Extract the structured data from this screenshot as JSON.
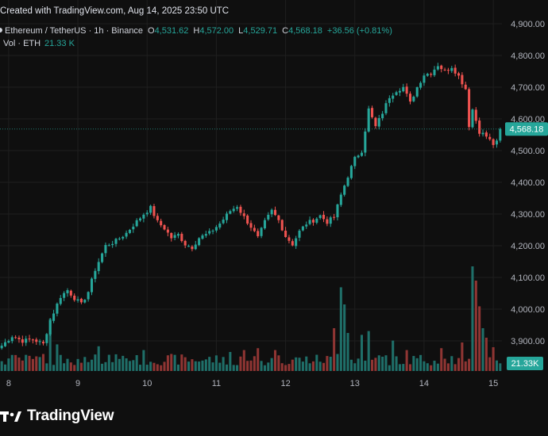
{
  "header": {
    "created_text": "Created with TradingView.com, Aug 14, 2025 23:50 UTC",
    "symbol": "Ethereum / TetherUS · 1h · Binance",
    "ohlc": {
      "o_label": "O",
      "o_value": "4,531.62",
      "h_label": "H",
      "h_value": "4,572.00",
      "l_label": "L",
      "l_value": "4,529.71",
      "c_label": "C",
      "c_value": "4,568.18",
      "change": "+36.56 (+0.81%)"
    },
    "volume_label": "Vol · ETH",
    "volume_value": "21.33 K"
  },
  "branding": {
    "logo_text": "TradingView"
  },
  "icons": {
    "logo": "tradingview-logo-icon"
  },
  "colors": {
    "background": "#0f0f0f",
    "up": "#26a69a",
    "down": "#ef5350",
    "up_volume": "#1f6f69",
    "down_volume": "#8f3533",
    "grid": "#1f1f1f",
    "text": "#d1d4dc"
  },
  "chart_data": {
    "type": "candlestick",
    "symbol": "ETHUSDT",
    "interval": "1h",
    "x_ticks": [
      "8",
      "9",
      "10",
      "11",
      "12",
      "13",
      "14",
      "15"
    ],
    "y_ticks": [
      "3,900.00",
      "4,000.00",
      "4,100.00",
      "4,200.00",
      "4,300.00",
      "4,400.00",
      "4,500.00",
      "4,600.00",
      "4,700.00",
      "4,800.00",
      "4,900.00"
    ],
    "ylim": [
      3810,
      4920
    ],
    "last_price": "4,568.18",
    "last_volume_label": "21.33K",
    "grid": true,
    "close_path": [
      [
        0,
        3885
      ],
      [
        3,
        3915
      ],
      [
        6,
        3900
      ],
      [
        9,
        3905
      ],
      [
        12,
        3890
      ],
      [
        14,
        3965
      ],
      [
        17,
        4040
      ],
      [
        19,
        4060
      ],
      [
        21,
        4035
      ],
      [
        23,
        4015
      ],
      [
        25,
        4055
      ],
      [
        27,
        4125
      ],
      [
        30,
        4200
      ],
      [
        33,
        4215
      ],
      [
        36,
        4240
      ],
      [
        38,
        4265
      ],
      [
        41,
        4300
      ],
      [
        43,
        4320
      ],
      [
        45,
        4275
      ],
      [
        47,
        4255
      ],
      [
        49,
        4225
      ],
      [
        51,
        4235
      ],
      [
        53,
        4205
      ],
      [
        55,
        4195
      ],
      [
        57,
        4225
      ],
      [
        60,
        4240
      ],
      [
        63,
        4270
      ],
      [
        66,
        4310
      ],
      [
        68,
        4325
      ],
      [
        70,
        4290
      ],
      [
        72,
        4260
      ],
      [
        74,
        4225
      ],
      [
        76,
        4275
      ],
      [
        78,
        4310
      ],
      [
        80,
        4280
      ],
      [
        82,
        4230
      ],
      [
        84,
        4205
      ],
      [
        86,
        4245
      ],
      [
        88,
        4270
      ],
      [
        90,
        4280
      ],
      [
        92,
        4295
      ],
      [
        94,
        4275
      ],
      [
        96,
        4290
      ],
      [
        98,
        4360
      ],
      [
        100,
        4420
      ],
      [
        102,
        4475
      ],
      [
        104,
        4500
      ],
      [
        106,
        4630
      ],
      [
        108,
        4575
      ],
      [
        110,
        4620
      ],
      [
        112,
        4670
      ],
      [
        114,
        4690
      ],
      [
        116,
        4700
      ],
      [
        118,
        4650
      ],
      [
        120,
        4700
      ],
      [
        122,
        4740
      ],
      [
        124,
        4745
      ],
      [
        126,
        4770
      ],
      [
        128,
        4750
      ],
      [
        130,
        4765
      ],
      [
        132,
        4735
      ],
      [
        134,
        4695
      ],
      [
        135,
        4580
      ],
      [
        136,
        4630
      ],
      [
        138,
        4560
      ],
      [
        140,
        4545
      ],
      [
        142,
        4520
      ],
      [
        143,
        4531.62
      ],
      [
        144,
        4568.18
      ]
    ],
    "volume_scale": [
      0,
      100
    ],
    "volume_spikes": [
      [
        14,
        55
      ],
      [
        16,
        28
      ],
      [
        28,
        26
      ],
      [
        41,
        22
      ],
      [
        66,
        20
      ],
      [
        70,
        22
      ],
      [
        74,
        24
      ],
      [
        79,
        22
      ],
      [
        96,
        45
      ],
      [
        98,
        88
      ],
      [
        99,
        70
      ],
      [
        100,
        40
      ],
      [
        104,
        38
      ],
      [
        106,
        42
      ],
      [
        113,
        32
      ],
      [
        117,
        22
      ],
      [
        127,
        24
      ],
      [
        133,
        30
      ],
      [
        136,
        110
      ],
      [
        137,
        95
      ],
      [
        138,
        68
      ],
      [
        139,
        45
      ],
      [
        140,
        35
      ],
      [
        142,
        25
      ]
    ],
    "volume_base": 6
  }
}
